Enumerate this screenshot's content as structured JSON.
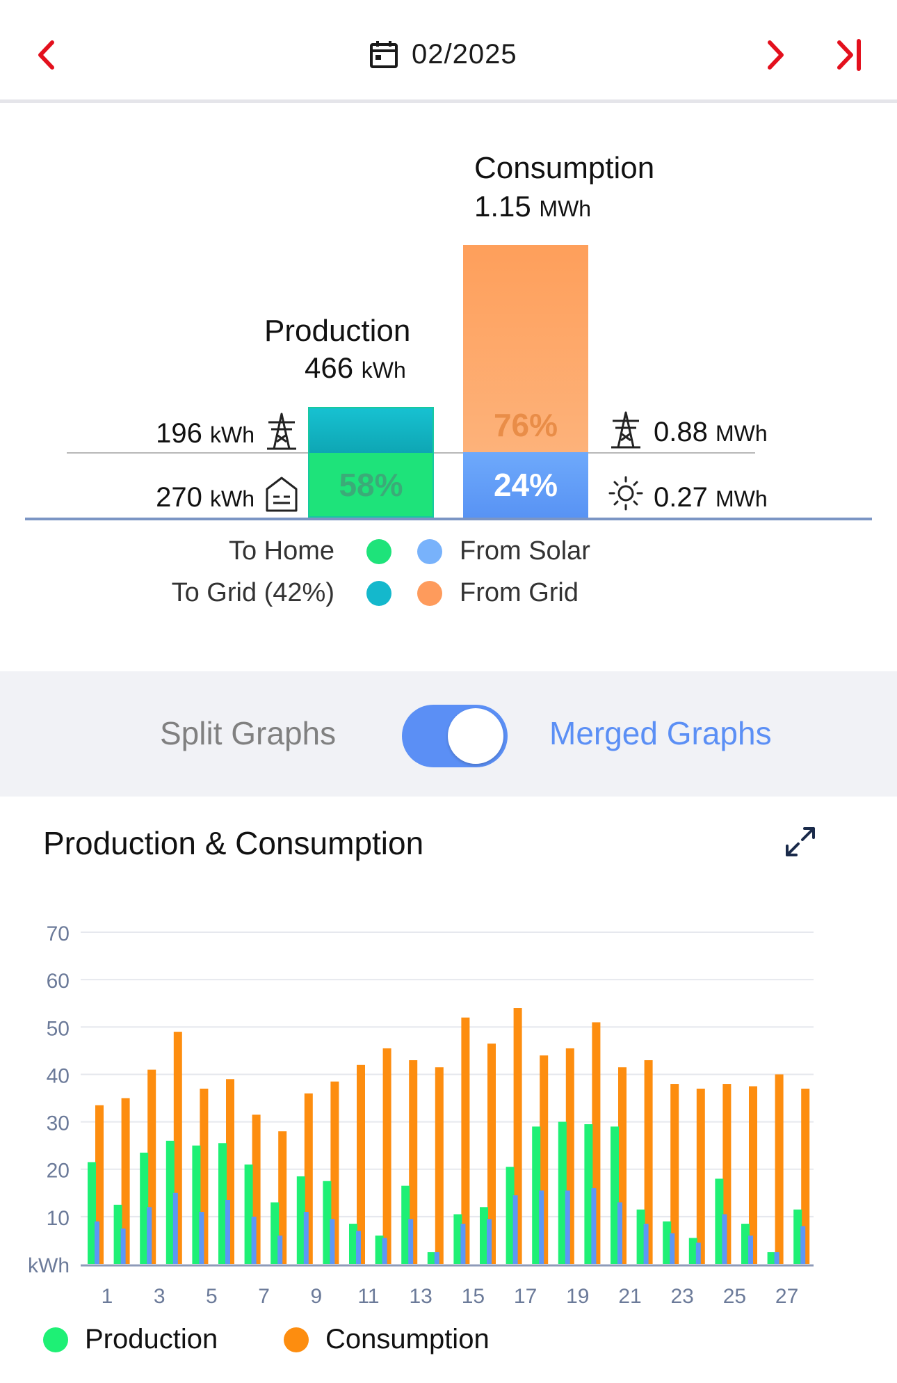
{
  "header": {
    "date": "02/2025",
    "prev_icon": "chevron-left-icon",
    "next_icon": "chevron-right-icon",
    "last_icon": "skip-to-end-icon",
    "calendar_icon": "calendar-icon",
    "accent_color": "#e3101d"
  },
  "summary": {
    "production": {
      "title": "Production",
      "value": "466",
      "unit": "kWh",
      "to_grid_value": "196",
      "to_grid_unit": "kWh",
      "to_home_value": "270",
      "to_home_unit": "kWh",
      "home_pct": "58%",
      "home_fraction": 0.58
    },
    "consumption": {
      "title": "Consumption",
      "value": "1.15",
      "unit": "MWh",
      "from_grid_value": "0.88",
      "from_grid_unit": "MWh",
      "from_solar_value": "0.27",
      "from_solar_unit": "MWh",
      "grid_pct": "76%",
      "solar_pct": "24%",
      "solar_fraction": 0.24
    },
    "legend": {
      "to_home": "To Home",
      "to_grid": "To Grid (42%)",
      "from_solar": "From Solar",
      "from_grid": "From Grid"
    },
    "colors": {
      "to_home": "#1ee37a",
      "to_grid": "#14b8cc",
      "from_solar": "#78b2fb",
      "from_grid": "#fe9b5c"
    }
  },
  "toggle": {
    "split_label": "Split Graphs",
    "merged_label": "Merged Graphs",
    "state": "merged",
    "active_color": "#5b8ff5"
  },
  "chart": {
    "title": "Production & Consumption",
    "expand_icon": "expand-icon"
  },
  "chart_data": {
    "type": "bar",
    "ylabel": "kWh",
    "ylim": [
      0,
      70
    ],
    "yticks": [
      10,
      20,
      30,
      40,
      50,
      60,
      70
    ],
    "grid": true,
    "legend_placement": "bottom-left",
    "categories": [
      "1",
      "2",
      "3",
      "4",
      "5",
      "6",
      "7",
      "8",
      "9",
      "10",
      "11",
      "12",
      "13",
      "14",
      "15",
      "16",
      "17",
      "18",
      "19",
      "20",
      "21",
      "22",
      "23",
      "24",
      "25",
      "26",
      "27",
      "28"
    ],
    "x_tick_labels": [
      "1",
      "",
      "3",
      "",
      "5",
      "",
      "7",
      "",
      "9",
      "",
      "11",
      "",
      "13",
      "",
      "15",
      "",
      "17",
      "",
      "19",
      "",
      "21",
      "",
      "23",
      "",
      "25",
      "",
      "27",
      ""
    ],
    "series": [
      {
        "name": "Production",
        "color": "#1ef075",
        "values": [
          21.5,
          12.5,
          23.5,
          26,
          25,
          25.5,
          21,
          13,
          18.5,
          17.5,
          8.5,
          6,
          16.5,
          2.5,
          10.5,
          12,
          20.5,
          29,
          30,
          29.5,
          29,
          11.5,
          9,
          5.5,
          18,
          8.5,
          2.5,
          11.5
        ]
      },
      {
        "name": "Consumption",
        "color": "#fd8d0f",
        "values": [
          33.5,
          35,
          41,
          49,
          37,
          39,
          31.5,
          28,
          36,
          38.5,
          42,
          45.5,
          43,
          41.5,
          52,
          46.5,
          54,
          44,
          45.5,
          51,
          41.5,
          43,
          38,
          37,
          38,
          37.5,
          40,
          37
        ]
      },
      {
        "name": "From Solar",
        "color": "#5d97f7",
        "values": [
          9,
          7.5,
          12,
          15,
          11,
          13.5,
          10,
          6,
          11,
          9.5,
          7,
          5.5,
          9.5,
          2.5,
          8.5,
          9.5,
          14.5,
          15.5,
          15.5,
          16,
          13,
          8.5,
          6.5,
          4.5,
          10.5,
          6,
          2.5,
          8
        ]
      }
    ],
    "legend_entries": [
      "Production",
      "Consumption"
    ]
  }
}
